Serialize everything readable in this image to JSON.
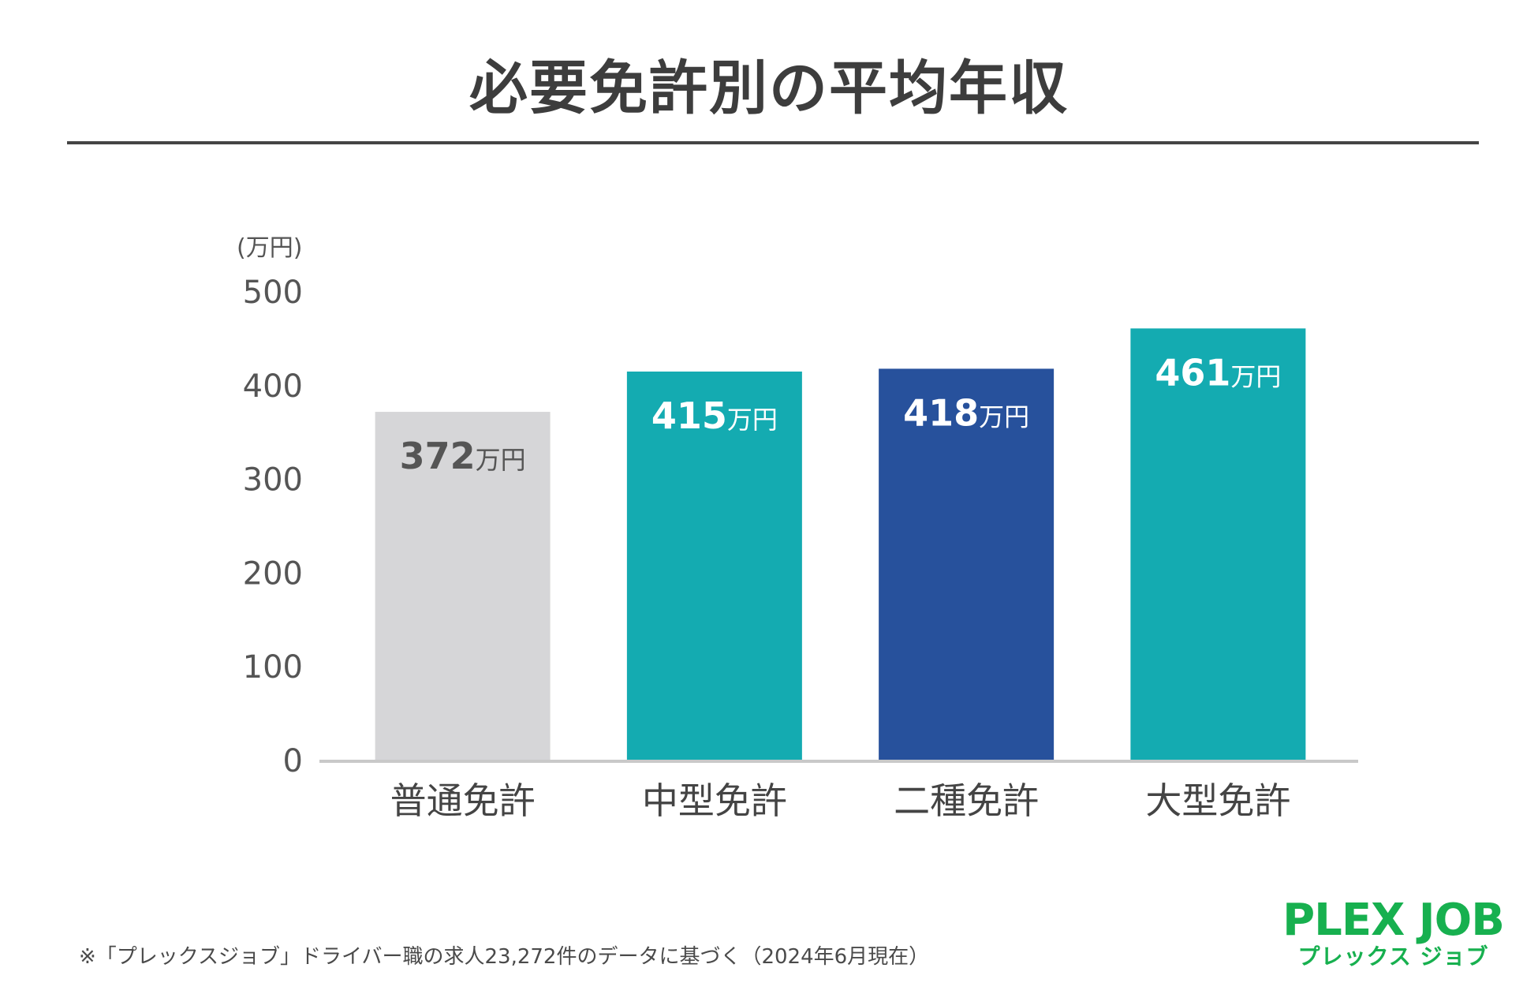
{
  "title": "必要免許別の平均年収",
  "chart_data": {
    "type": "bar",
    "ylabel": "(万円)",
    "ylim": [
      0,
      500
    ],
    "yticks": [
      "0",
      "100",
      "200",
      "300",
      "400",
      "500"
    ],
    "categories": [
      "普通免許",
      "中型免許",
      "二種免許",
      "大型免許"
    ],
    "values": [
      372,
      415,
      418,
      461
    ],
    "value_unit": "万円",
    "colors": [
      "#d6d6d8",
      "#14abb1",
      "#27519c",
      "#14abb1"
    ],
    "label_colors": [
      "#555555",
      "#ffffff",
      "#ffffff",
      "#ffffff"
    ],
    "axis_color": "#c9c9c9",
    "grid": false
  },
  "footnote": "※「プレックスジョブ」ドライバー職の求人23,272件のデータに基づく（2024年6月現在）",
  "logo": {
    "main": "PLEX JOB",
    "sub": "プレックス ジョブ",
    "color": "#17b04f"
  }
}
